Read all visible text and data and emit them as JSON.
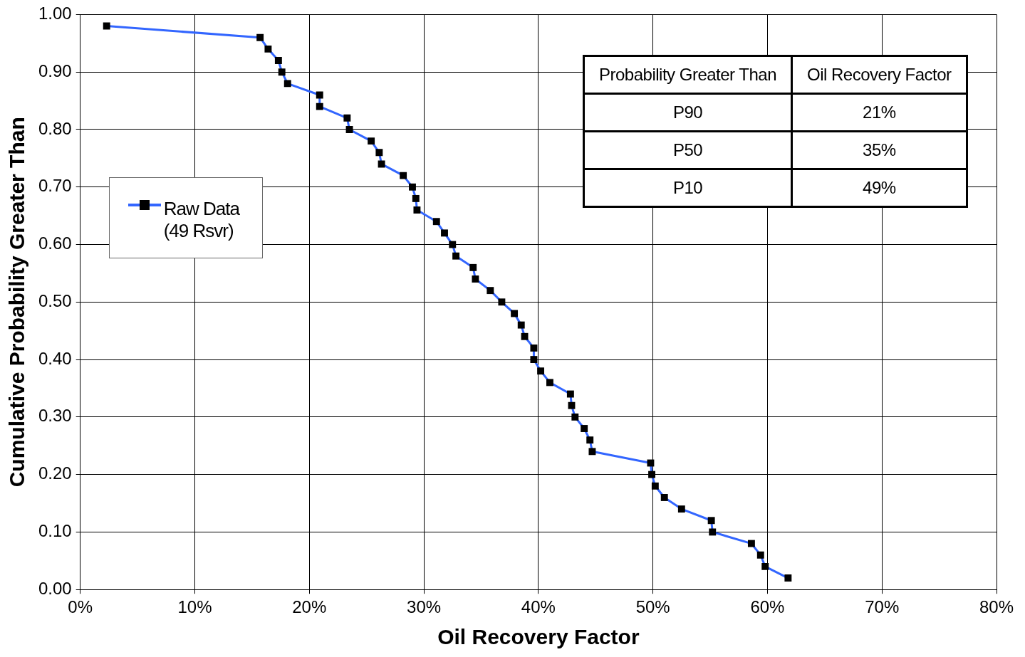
{
  "chart_data": {
    "type": "line",
    "xlabel": "Oil Recovery Factor",
    "ylabel": "Cumulative Probability Greater Than",
    "xlim": [
      0,
      80
    ],
    "xticks": [
      {
        "value": 0,
        "label": "0%"
      },
      {
        "value": 10,
        "label": "10%"
      },
      {
        "value": 20,
        "label": "20%"
      },
      {
        "value": 30,
        "label": "30%"
      },
      {
        "value": 40,
        "label": "40%"
      },
      {
        "value": 50,
        "label": "50%"
      },
      {
        "value": 60,
        "label": "60%"
      },
      {
        "value": 70,
        "label": "70%"
      },
      {
        "value": 80,
        "label": "80%"
      }
    ],
    "ylim": [
      0,
      1
    ],
    "yticks": [
      {
        "value": 0,
        "label": "0.00"
      },
      {
        "value": 0.1,
        "label": "0.10"
      },
      {
        "value": 0.2,
        "label": "0.20"
      },
      {
        "value": 0.3,
        "label": "0.30"
      },
      {
        "value": 0.4,
        "label": "0.40"
      },
      {
        "value": 0.5,
        "label": "0.50"
      },
      {
        "value": 0.6,
        "label": "0.60"
      },
      {
        "value": 0.7,
        "label": "0.70"
      },
      {
        "value": 0.8,
        "label": "0.80"
      },
      {
        "value": 0.9,
        "label": "0.90"
      },
      {
        "value": 1,
        "label": "1.00"
      }
    ],
    "grid": true,
    "legend": "left",
    "marker": "square",
    "line_style": "solid",
    "series": [
      {
        "name": "Raw Data (49 Rsvr)",
        "color": "#3366ff",
        "x": [
          2.3,
          15.7,
          16.4,
          17.3,
          17.6,
          18.1,
          20.9,
          20.9,
          23.3,
          23.5,
          25.4,
          26.1,
          26.3,
          28.2,
          29.0,
          29.3,
          29.4,
          31.1,
          31.8,
          32.5,
          32.8,
          34.3,
          34.5,
          35.8,
          36.8,
          37.9,
          38.5,
          38.8,
          39.6,
          39.6,
          40.2,
          41.0,
          42.8,
          42.9,
          43.2,
          44.0,
          44.5,
          44.7,
          49.8,
          49.9,
          50.2,
          51.0,
          52.5,
          55.1,
          55.2,
          58.6,
          59.4,
          59.8,
          61.8
        ],
        "values": [
          0.98,
          0.96,
          0.94,
          0.92,
          0.9,
          0.88,
          0.86,
          0.84,
          0.82,
          0.8,
          0.78,
          0.76,
          0.74,
          0.72,
          0.7,
          0.68,
          0.66,
          0.64,
          0.62,
          0.6,
          0.58,
          0.56,
          0.54,
          0.52,
          0.5,
          0.48,
          0.46,
          0.44,
          0.42,
          0.4,
          0.38,
          0.36,
          0.34,
          0.32,
          0.3,
          0.28,
          0.26,
          0.24,
          0.22,
          0.2,
          0.18,
          0.16,
          0.14,
          0.12,
          0.1,
          0.08,
          0.06,
          0.04,
          0.02
        ]
      }
    ],
    "annotations": [
      "Probability Greater Than",
      "Oil Recovery Factor",
      "P90",
      "21%",
      "P50",
      "35%",
      "P10",
      "49%"
    ]
  }
}
